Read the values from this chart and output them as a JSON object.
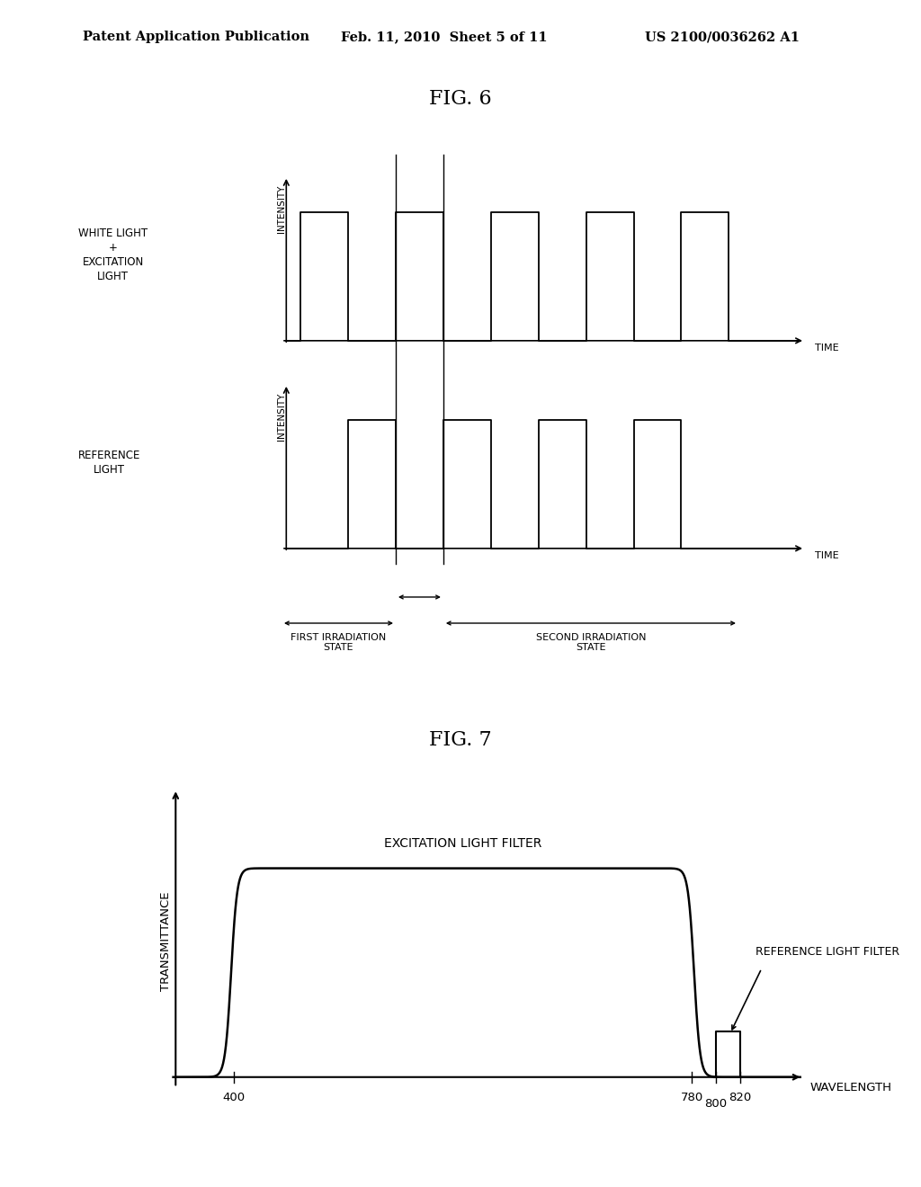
{
  "bg_color": "#ffffff",
  "header_text": "Patent Application Publication",
  "header_date": "Feb. 11, 2010  Sheet 5 of 11",
  "header_patent": "US 2100/0036262 A1",
  "fig6_title": "FIG. 6",
  "fig7_title": "FIG. 7",
  "line_color": "#000000",
  "top_label": "WHITE LIGHT\n+\nEXCITATION\nLIGHT",
  "bottom_label": "REFERENCE\nLIGHT",
  "intensity_label": "INTENSITY",
  "time_label": "TIME",
  "transmittance_label": "TRANSMITTANCE",
  "wavelength_label": "WAVELENGTH",
  "excitation_filter_label": "EXCITATION LIGHT FILTER",
  "reference_filter_label": "REFERENCE LIGHT FILTER",
  "first_state_label": "FIRST IRRADIATION\nSTATE",
  "second_state_label": "SECOND IRRADIATION\nSTATE"
}
